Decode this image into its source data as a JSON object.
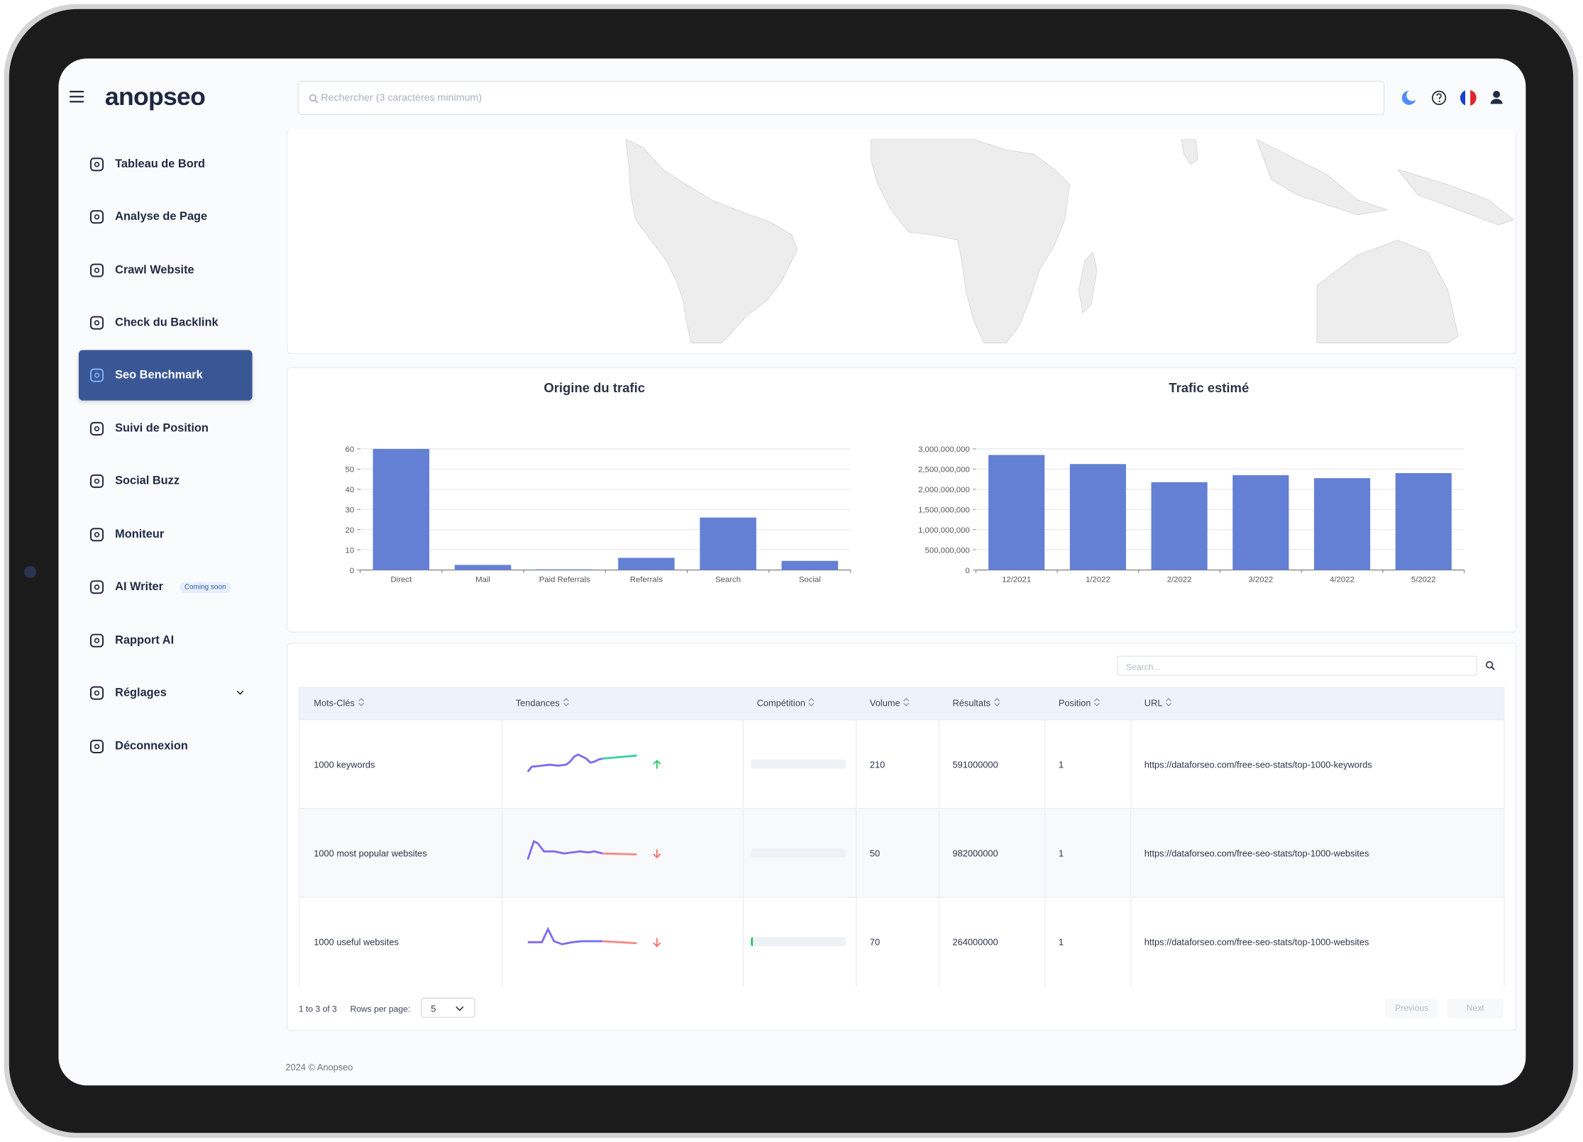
{
  "brand": "anopseo",
  "search_placeholder": "Rechercher (3 caractères minimum)",
  "sidebar": [
    {
      "label": "Tableau de Bord"
    },
    {
      "label": "Analyse de Page"
    },
    {
      "label": "Crawl Website"
    },
    {
      "label": "Check du Backlink"
    },
    {
      "label": "Seo Benchmark",
      "active": true
    },
    {
      "label": "Suivi de Position"
    },
    {
      "label": "Social Buzz"
    },
    {
      "label": "Moniteur"
    },
    {
      "label": "AI Writer",
      "badge": "Coming soon"
    },
    {
      "label": "Rapport AI"
    },
    {
      "label": "Réglages",
      "expandable": true
    },
    {
      "label": "Déconnexion"
    }
  ],
  "chart_data": [
    {
      "type": "bar",
      "title": "Origine du trafic",
      "categories": [
        "Direct",
        "Mail",
        "Paid Referrals",
        "Referrals",
        "Search",
        "Social"
      ],
      "values": [
        60,
        2.5,
        0.3,
        6,
        26,
        4.5
      ],
      "color": "#6480d4",
      "ylim": [
        0,
        60
      ],
      "yticks": [
        0,
        10,
        20,
        30,
        40,
        50,
        60
      ],
      "grid": true
    },
    {
      "type": "bar",
      "title": "Trafic estimé",
      "categories": [
        "12/2021",
        "1/2022",
        "2/2022",
        "3/2022",
        "4/2022",
        "5/2022"
      ],
      "values": [
        2850000000,
        2625000000,
        2175000000,
        2350000000,
        2275000000,
        2400000000
      ],
      "color": "#6480d4",
      "ylim": [
        0,
        3000000000
      ],
      "yticks": [
        0,
        {
          "value": 500000000,
          "label": "500,000,000"
        },
        {
          "value": 1000000000,
          "label": "1,000,000,000"
        },
        {
          "value": 1500000000,
          "label": "1,500,000,000"
        },
        {
          "value": 2000000000,
          "label": "2,000,000,000"
        },
        {
          "value": 2500000000,
          "label": "2,500,000,000"
        },
        {
          "value": 3000000000,
          "label": "3,000,000,000"
        }
      ],
      "grid": true
    }
  ],
  "table": {
    "search_placeholder": "Search...",
    "columns": [
      "Mots-Clés",
      "Tendances",
      "Compétition",
      "Volume",
      "Résultats",
      "Position",
      "URL"
    ],
    "rows": [
      {
        "keyword": "1000 keywords",
        "volume": 210,
        "results": 591000000,
        "position": 1,
        "url": "https://dataforseo.com/free-seo-stats/top-1000-keywords"
      },
      {
        "keyword": "1000 most popular websites",
        "volume": 50,
        "results": 982000000,
        "position": 1,
        "url": "https://dataforseo.com/free-seo-stats/top-1000-websites"
      },
      {
        "keyword": "1000 useful websites",
        "volume": 70,
        "results": 264000000,
        "position": 1,
        "url": "https://dataforseo.com/free-seo-stats/top-1000-websites"
      }
    ]
  },
  "pagination": {
    "summary": "1 to 3 of 3",
    "rows_per_page_label": "Rows per page:",
    "rows_per_page": 5,
    "previous": "Previous",
    "next": "Next"
  },
  "footer": "2024 © Anopseo"
}
